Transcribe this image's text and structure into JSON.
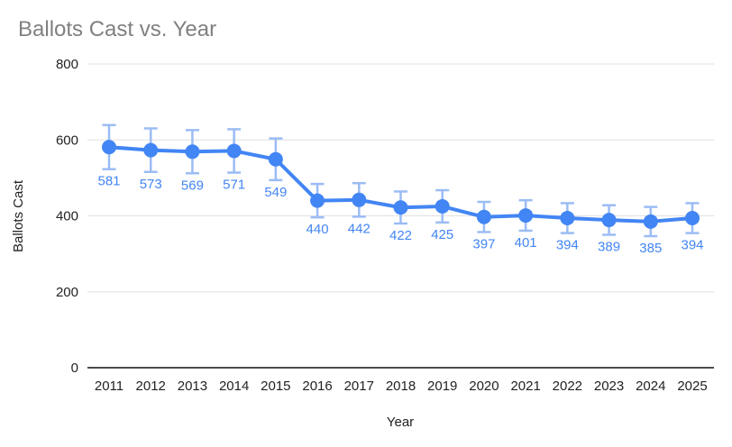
{
  "title": "Ballots Cast vs. Year",
  "chart_data": {
    "type": "line",
    "title": "Ballots Cast vs. Year",
    "xlabel": "Year",
    "ylabel": "Ballots Cast",
    "categories": [
      "2011",
      "2012",
      "2013",
      "2014",
      "2015",
      "2016",
      "2017",
      "2018",
      "2019",
      "2020",
      "2021",
      "2022",
      "2023",
      "2024",
      "2025"
    ],
    "values": [
      581,
      573,
      569,
      571,
      549,
      440,
      442,
      422,
      425,
      397,
      401,
      394,
      389,
      385,
      394
    ],
    "data_labels_visible": true,
    "error_bars": "plus-minus 10 percent",
    "ylim": [
      0,
      800
    ],
    "yticks": [
      0,
      200,
      400,
      600,
      800
    ],
    "grid": "horizontal",
    "legend_position": "none",
    "colors": {
      "line": "#4285f4",
      "point": "#4285f4",
      "error_bar": "#9bbcf5",
      "data_label": "#4285f4",
      "title": "#808080",
      "axis_text": "#222222",
      "gridline": "#e0e0e0",
      "axis_line": "#333333",
      "background": "#ffffff"
    }
  }
}
